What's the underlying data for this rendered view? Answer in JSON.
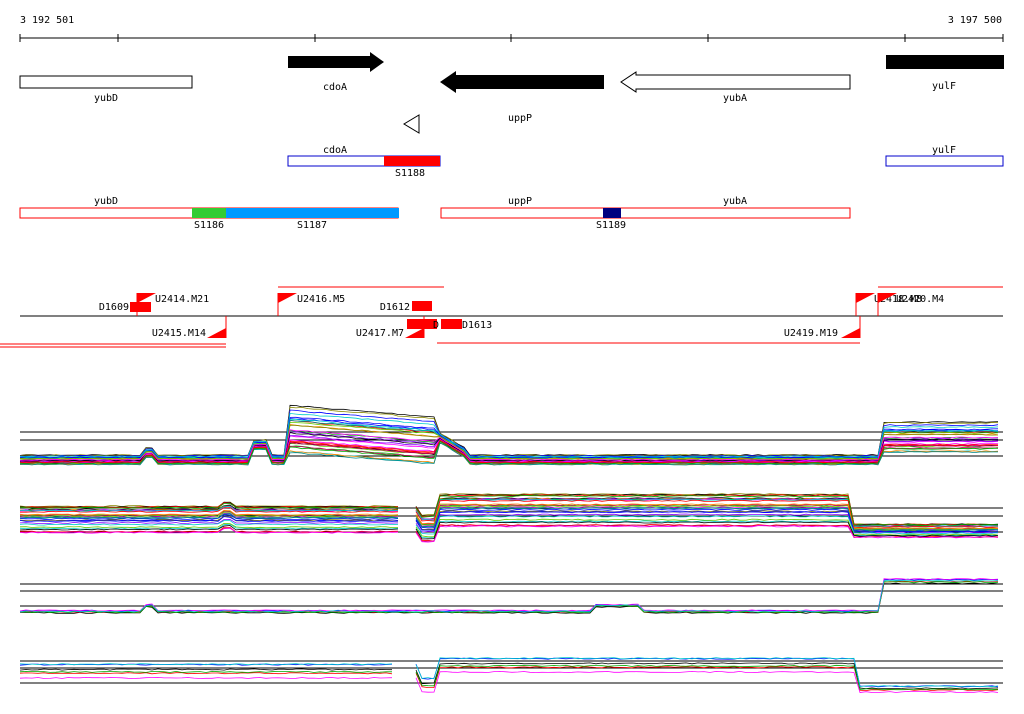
{
  "coordinates": {
    "start": "3 192 501",
    "end": "3 197 500"
  },
  "genes": [
    {
      "id": "yubD",
      "label": "yubD",
      "style": "outline"
    },
    {
      "id": "cdoA",
      "label": "cdoA",
      "style": "filled-right"
    },
    {
      "id": "uppP",
      "label": "uppP",
      "style": "filled-left"
    },
    {
      "id": "yubA",
      "label": "yubA",
      "style": "outline-left"
    },
    {
      "id": "yulF",
      "label": "yulF",
      "style": "filled"
    }
  ],
  "transcripts": {
    "row1": [
      {
        "id": "cdoA",
        "label": "cdoA",
        "colors": [
          "#ffffff",
          "#ff0000"
        ]
      },
      {
        "id": "yulF",
        "label": "yulF",
        "colors": [
          "#ffffff"
        ]
      }
    ],
    "row2": [
      {
        "id": "yubD",
        "label": "yubD"
      },
      {
        "id": "uppP",
        "label": "uppP"
      },
      {
        "id": "yubA",
        "label": "yubA"
      }
    ],
    "segments": [
      {
        "label": "S1188",
        "color": "#ff0000"
      },
      {
        "label": "S1186",
        "color": "#33cc33"
      },
      {
        "label": "S1187",
        "color": "#0099ff"
      },
      {
        "label": "S1189",
        "color": "#000080"
      }
    ]
  },
  "features": {
    "labels_top": [
      "D1609",
      "U2414.M21",
      "U2416.M5",
      "D1612",
      "U2418.M8",
      "U2420.M4"
    ],
    "labels_bottom": [
      "U2415.M14",
      "U2417.M7",
      "D1613",
      "U2419.M19"
    ],
    "labels_fragment": [
      "D"
    ]
  },
  "colors": {
    "feature_red": "#ff0000",
    "gene_blue": "#0000cc",
    "trace_palette": [
      "#000000",
      "#ff0000",
      "#00aa00",
      "#0000ff",
      "#ff00ff",
      "#00cccc",
      "#ff8800",
      "#8800ff",
      "#888800",
      "#008888",
      "#cc0066",
      "#66cc00"
    ]
  }
}
